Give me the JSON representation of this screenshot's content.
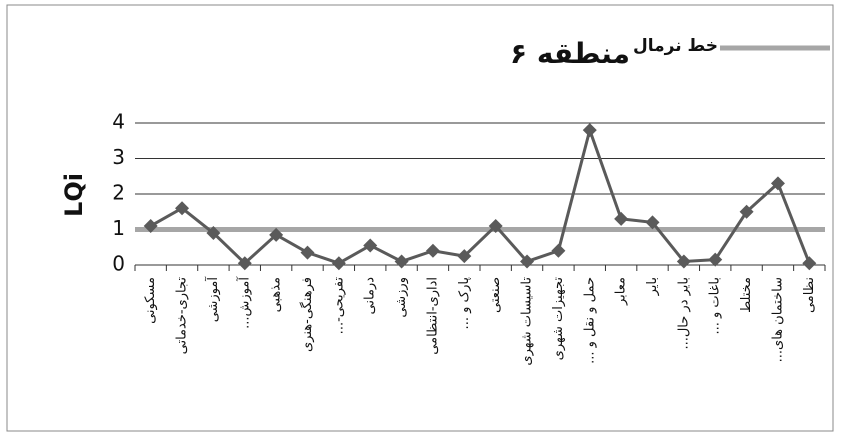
{
  "chart_data": {
    "type": "line",
    "title": "منطقه ۶",
    "y_label": "LQi",
    "categories": [
      "مسکونی",
      "تجاری-خدماتی",
      "آموزشی",
      "آموزش...",
      "مذهبی",
      "فرهنگی-هنری",
      "تفریحی-...",
      "درمانی",
      "ورزشی",
      "اداری-انتظامی",
      "پارک و ...",
      "صنعتی",
      "تاسیسات شهری",
      "تجهیزات شهری",
      "حمل و نقل و ...",
      "معابر",
      "بایر",
      "بایر در حال...",
      "باغات و ...",
      "مختلط",
      "ساختمان های...",
      "نظامی"
    ],
    "series": [
      {
        "color": "#5a5a5a",
        "values": [
          1.1,
          1.6,
          0.9,
          0.05,
          0.85,
          0.35,
          0.05,
          0.55,
          0.1,
          0.4,
          0.25,
          1.1,
          0.1,
          0.4,
          3.8,
          1.3,
          1.2,
          0.1,
          0.15,
          1.5,
          2.3,
          0.05
        ]
      }
    ],
    "reference_line": {
      "name": "خط نرمال",
      "value": 1,
      "color": "#a6a6a6"
    },
    "ylim": [
      0,
      4
    ],
    "yticks": [
      0,
      1,
      2,
      3,
      4
    ],
    "grid": true
  }
}
